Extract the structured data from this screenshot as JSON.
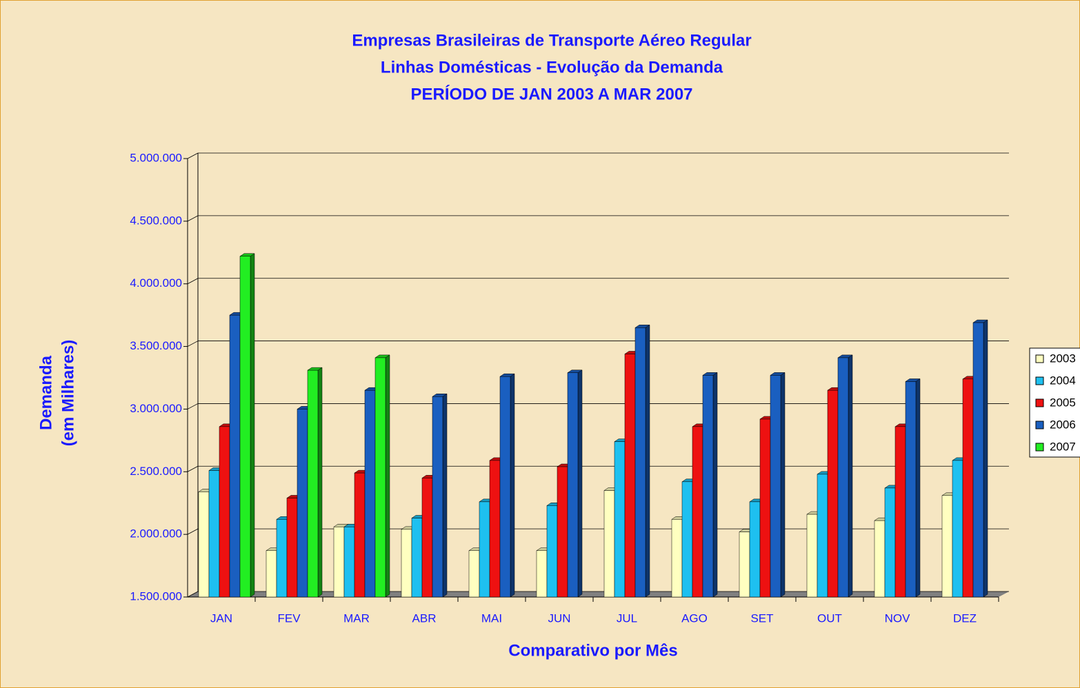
{
  "chart_data": {
    "type": "bar3d",
    "title": [
      "Empresas Brasileiras de Transporte Aéreo Regular",
      "Linhas Domésticas - Evolução da Demanda",
      "PERÍODO DE JAN 2003 A MAR 2007"
    ],
    "xlabel": "Comparativo por Mês",
    "ylabel": [
      "Demanda",
      "(em Milhares)"
    ],
    "categories": [
      "JAN",
      "FEV",
      "MAR",
      "ABR",
      "MAI",
      "JUN",
      "JUL",
      "AGO",
      "SET",
      "OUT",
      "NOV",
      "DEZ"
    ],
    "series": [
      {
        "name": "2003",
        "color": "#ffffc0",
        "values": [
          2340000,
          1870000,
          2060000,
          2040000,
          1870000,
          1870000,
          2350000,
          2120000,
          2020000,
          2160000,
          2110000,
          2310000
        ]
      },
      {
        "name": "2004",
        "color": "#1ec0f0",
        "values": [
          2510000,
          2120000,
          2060000,
          2130000,
          2260000,
          2230000,
          2740000,
          2420000,
          2260000,
          2480000,
          2370000,
          2590000
        ]
      },
      {
        "name": "2005",
        "color": "#ee1111",
        "values": [
          2860000,
          2290000,
          2490000,
          2450000,
          2590000,
          2540000,
          3440000,
          2860000,
          2920000,
          3150000,
          2860000,
          3240000
        ]
      },
      {
        "name": "2006",
        "color": "#1a5fc0",
        "values": [
          3750000,
          3000000,
          3150000,
          3100000,
          3260000,
          3290000,
          3650000,
          3270000,
          3270000,
          3410000,
          3220000,
          3690000
        ]
      },
      {
        "name": "2007",
        "color": "#22ee22",
        "values": [
          4220000,
          3310000,
          3410000,
          null,
          null,
          null,
          null,
          null,
          null,
          null,
          null,
          null
        ]
      }
    ],
    "ylim": [
      1500000,
      5000000
    ],
    "yticks": [
      {
        "value": 1500000,
        "label": "1.500.000"
      },
      {
        "value": 2000000,
        "label": "2.000.000"
      },
      {
        "value": 2500000,
        "label": "2.500.000"
      },
      {
        "value": 3000000,
        "label": "3.000.000"
      },
      {
        "value": 3500000,
        "label": "3.500.000"
      },
      {
        "value": 4000000,
        "label": "4.000.000"
      },
      {
        "value": 4500000,
        "label": "4.500.000"
      },
      {
        "value": 5000000,
        "label": "5.000.000"
      }
    ],
    "grid": true
  }
}
